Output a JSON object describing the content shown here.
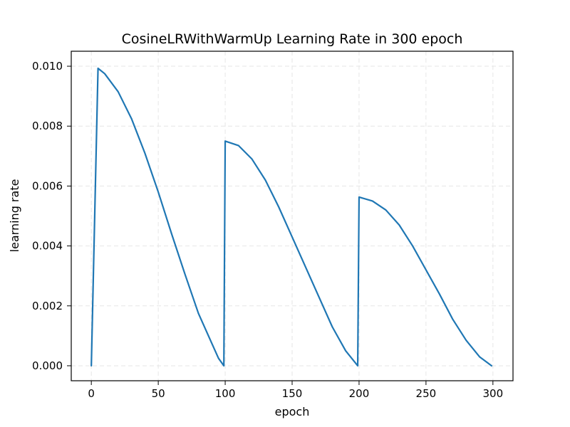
{
  "chart_data": {
    "type": "line",
    "title": "CosineLRWithWarmUp Learning Rate in 300 epoch",
    "xlabel": "epoch",
    "ylabel": "learning rate",
    "xlim": [
      -15,
      315
    ],
    "ylim": [
      -0.0005,
      0.0105
    ],
    "xticks": [
      0,
      50,
      100,
      150,
      200,
      250,
      300
    ],
    "yticks": [
      0.0,
      0.002,
      0.004,
      0.006,
      0.008,
      0.01
    ],
    "xtick_labels": [
      "0",
      "50",
      "100",
      "150",
      "200",
      "250",
      "300"
    ],
    "ytick_labels": [
      "0.000",
      "0.002",
      "0.004",
      "0.006",
      "0.008",
      "0.010"
    ],
    "grid": true,
    "series": [
      {
        "color": "#1f77b4",
        "points": [
          [
            0,
            0.0
          ],
          [
            5,
            0.00993
          ],
          [
            10,
            0.00975
          ],
          [
            20,
            0.00915
          ],
          [
            30,
            0.00825
          ],
          [
            40,
            0.0071
          ],
          [
            50,
            0.0058
          ],
          [
            60,
            0.0044
          ],
          [
            70,
            0.00305
          ],
          [
            80,
            0.00175
          ],
          [
            90,
            0.00075
          ],
          [
            95,
            0.00025
          ],
          [
            99,
            0.0
          ],
          [
            100,
            0.0075
          ],
          [
            110,
            0.00735
          ],
          [
            120,
            0.0069
          ],
          [
            130,
            0.0062
          ],
          [
            140,
            0.0053
          ],
          [
            150,
            0.0043
          ],
          [
            160,
            0.0033
          ],
          [
            170,
            0.0023
          ],
          [
            180,
            0.0013
          ],
          [
            190,
            0.0005
          ],
          [
            199,
            0.0
          ],
          [
            200,
            0.00563
          ],
          [
            210,
            0.0055
          ],
          [
            220,
            0.0052
          ],
          [
            230,
            0.0047
          ],
          [
            240,
            0.004
          ],
          [
            250,
            0.0032
          ],
          [
            260,
            0.0024
          ],
          [
            270,
            0.00155
          ],
          [
            280,
            0.00085
          ],
          [
            290,
            0.0003
          ],
          [
            299,
            0.0
          ]
        ]
      }
    ]
  }
}
